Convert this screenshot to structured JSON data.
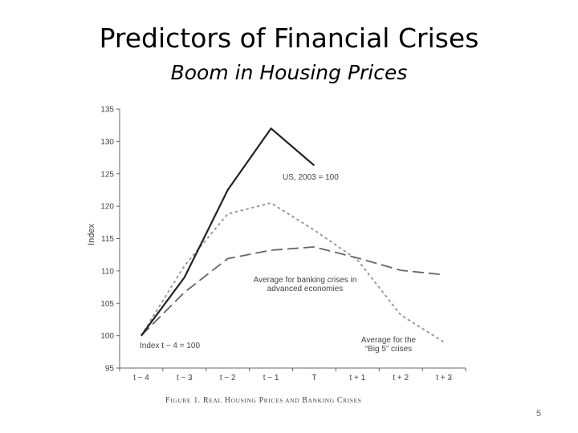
{
  "slide": {
    "title": "Predictors of Financial Crises",
    "subtitle": "Boom in Housing Prices",
    "page_number": "5"
  },
  "figure": {
    "caption_parts": [
      {
        "text": "F",
        "small": false
      },
      {
        "text": "IGURE",
        "small": true
      },
      {
        "text": " 1. R",
        "small": false
      },
      {
        "text": "EAL",
        "small": true
      },
      {
        "text": " H",
        "small": false
      },
      {
        "text": "OUSING",
        "small": true
      },
      {
        "text": " P",
        "small": false
      },
      {
        "text": "RICES AND",
        "small": true
      },
      {
        "text": " B",
        "small": false
      },
      {
        "text": "ANKING",
        "small": true
      },
      {
        "text": " C",
        "small": false
      },
      {
        "text": "RISES",
        "small": true
      }
    ]
  },
  "chart_data": {
    "type": "line",
    "categories": [
      "t − 4",
      "t − 3",
      "t − 2",
      "t − 1",
      "T",
      "t + 1",
      "t + 2",
      "t + 3"
    ],
    "ylabel": "Index",
    "ylim": [
      95,
      135
    ],
    "yticks": [
      95,
      100,
      105,
      110,
      115,
      120,
      125,
      130,
      135
    ],
    "grid": false,
    "series": [
      {
        "name": "US, 2003 = 100",
        "style": "solid",
        "color": "#222222",
        "values": [
          100,
          109,
          122.5,
          132,
          126.3,
          null,
          null,
          null
        ]
      },
      {
        "name": "Average for banking crises in advanced economies",
        "style": "dashed",
        "color": "#666666",
        "values": [
          100,
          106.7,
          111.9,
          113.2,
          113.7,
          112,
          110.1,
          109.4
        ]
      },
      {
        "name": "Average for the “Big 5” crises",
        "style": "dotted",
        "color": "#9a9a9a",
        "values": [
          100,
          110.8,
          118.8,
          120.5,
          116.3,
          111.7,
          103.2,
          99
        ]
      }
    ],
    "annotations": [
      {
        "lines": [
          "US, 2003 = 100"
        ],
        "series": 0
      },
      {
        "lines": [
          "Average for banking crises in",
          "advanced economies"
        ],
        "series": 1
      },
      {
        "lines": [
          "Average for the",
          "“Big 5” crises"
        ],
        "series": 2
      },
      {
        "lines": [
          "Index t − 4 = 100"
        ],
        "series": null
      }
    ]
  }
}
